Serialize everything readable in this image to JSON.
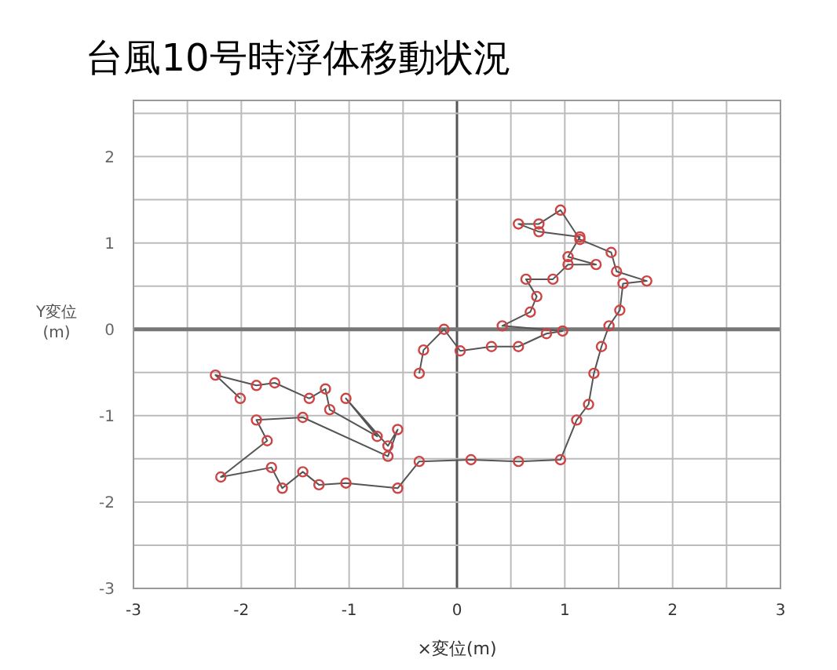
{
  "chart_data": {
    "type": "line",
    "title": "台風10号時浮体移動状況",
    "xlabel": "×変位(m)",
    "ylabel": "Y変位\n(m)",
    "xlim": [
      -3,
      3
    ],
    "ylim": [
      -3,
      2.65
    ],
    "xticks": [
      -3,
      {
        "value": -2.5,
        "label": null
      },
      -2,
      {
        "value": -1.5,
        "label": null
      },
      -1,
      {
        "value": -0.5,
        "label": null
      },
      0,
      {
        "value": 0.5,
        "label": null
      },
      1,
      {
        "value": 1.5,
        "label": null
      },
      2,
      {
        "value": 2.5,
        "label": null
      },
      3
    ],
    "yticks": [
      -3,
      {
        "value": -2.5,
        "label": null
      },
      -2,
      {
        "value": -1.5,
        "label": null
      },
      -1,
      {
        "value": -0.5,
        "label": null
      },
      0,
      {
        "value": 0.5,
        "label": null
      },
      1,
      {
        "value": 1.5,
        "label": null
      },
      2,
      {
        "value": 2.5,
        "label": null
      }
    ],
    "grid": true,
    "marker": "circle",
    "line_style": "solid",
    "series": [
      {
        "color": "#cc4444",
        "x": [
          -2.01,
          -2.24,
          -1.86,
          -1.69,
          -1.37,
          -1.22,
          -1.18,
          -0.74,
          -1.03,
          -0.64,
          -0.55,
          -0.64,
          -1.43,
          -1.86,
          -1.76,
          -2.19,
          -1.72,
          -1.62,
          -1.43,
          -1.28,
          -1.03,
          -0.55,
          -0.35,
          0.13,
          0.57,
          0.96,
          1.11,
          1.22,
          1.27,
          1.34,
          1.41,
          1.51,
          1.54,
          1.76,
          1.48,
          1.43,
          1.14,
          0.96,
          0.76,
          0.57,
          0.76,
          1.14,
          1.03,
          1.29,
          1.03,
          0.89,
          0.64,
          0.74,
          0.68,
          0.42,
          0.98,
          0.83,
          0.57,
          0.32,
          0.03,
          -0.12,
          -0.31,
          -0.35
        ],
        "values": [
          -0.8,
          -0.53,
          -0.65,
          -0.62,
          -0.8,
          -0.69,
          -0.93,
          -1.24,
          -0.8,
          -1.35,
          -1.16,
          -1.47,
          -1.02,
          -1.05,
          -1.29,
          -1.71,
          -1.6,
          -1.84,
          -1.65,
          -1.8,
          -1.78,
          -1.84,
          -1.53,
          -1.51,
          -1.53,
          -1.51,
          -1.05,
          -0.87,
          -0.51,
          -0.2,
          0.04,
          0.22,
          0.53,
          0.56,
          0.67,
          0.89,
          1.04,
          1.38,
          1.22,
          1.22,
          1.13,
          1.07,
          0.84,
          0.75,
          0.75,
          0.58,
          0.58,
          0.38,
          0.2,
          0.04,
          -0.02,
          -0.05,
          -0.2,
          -0.2,
          -0.25,
          0,
          -0.24,
          -0.51
        ]
      }
    ]
  }
}
